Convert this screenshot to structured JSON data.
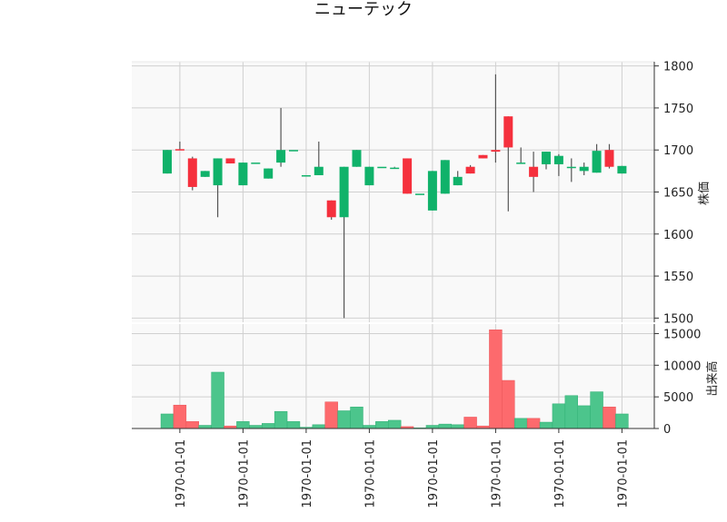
{
  "chart_data": {
    "type": "candlestick",
    "title": "ニューテック",
    "price_ylabel": "株価",
    "volume_ylabel": "出来高",
    "price_ylim": [
      1495,
      1805
    ],
    "price_yticks": [
      "1500",
      "1550",
      "1600",
      "1650",
      "1700",
      "1750",
      "1800"
    ],
    "volume_ylim": [
      0,
      16500
    ],
    "volume_yticks": [
      "0",
      "5000",
      "10000",
      "15000"
    ],
    "x_tick_labels": [
      "1970-01-01",
      "1970-01-01",
      "1970-01-01",
      "1970-01-01",
      "1970-01-01",
      "1970-01-01",
      "1970-01-01",
      "1970-01-01"
    ],
    "x_tick_bar_index": [
      1,
      6,
      11,
      16,
      21,
      26,
      31,
      36
    ],
    "grid": true,
    "colors": {
      "up": "#10b26a",
      "down": "#f5303d",
      "wick": "#555555",
      "up_volume": "#4cc58c",
      "down_volume": "#fd6a6d",
      "grid": "#d0d0d0",
      "panel_bg": "#f9f9f9"
    },
    "bars": [
      {
        "open": 1672,
        "high": 1700,
        "low": 1672,
        "close": 1700,
        "volume": 2300
      },
      {
        "open": 1701,
        "high": 1710,
        "low": 1700,
        "close": 1700,
        "volume": 3700
      },
      {
        "open": 1690,
        "high": 1692,
        "low": 1652,
        "close": 1656,
        "volume": 1100
      },
      {
        "open": 1668,
        "high": 1675,
        "low": 1668,
        "close": 1675,
        "volume": 500
      },
      {
        "open": 1658,
        "high": 1690,
        "low": 1620,
        "close": 1690,
        "volume": 8900
      },
      {
        "open": 1690,
        "high": 1690,
        "low": 1684,
        "close": 1684,
        "volume": 400
      },
      {
        "open": 1658,
        "high": 1685,
        "low": 1658,
        "close": 1685,
        "volume": 1100
      },
      {
        "open": 1685,
        "high": 1685,
        "low": 1685,
        "close": 1685,
        "volume": 500
      },
      {
        "open": 1666,
        "high": 1678,
        "low": 1666,
        "close": 1678,
        "volume": 800
      },
      {
        "open": 1685,
        "high": 1750,
        "low": 1680,
        "close": 1700,
        "volume": 2700
      },
      {
        "open": 1700,
        "high": 1700,
        "low": 1700,
        "close": 1700,
        "volume": 1100
      },
      {
        "open": 1670,
        "high": 1670,
        "low": 1670,
        "close": 1670,
        "volume": 200
      },
      {
        "open": 1670,
        "high": 1710,
        "low": 1670,
        "close": 1680,
        "volume": 600
      },
      {
        "open": 1640,
        "high": 1640,
        "low": 1617,
        "close": 1620,
        "volume": 4200
      },
      {
        "open": 1620,
        "high": 1680,
        "low": 1500,
        "close": 1680,
        "volume": 2800
      },
      {
        "open": 1680,
        "high": 1700,
        "low": 1680,
        "close": 1700,
        "volume": 3400
      },
      {
        "open": 1658,
        "high": 1680,
        "low": 1658,
        "close": 1680,
        "volume": 500
      },
      {
        "open": 1680,
        "high": 1680,
        "low": 1680,
        "close": 1680,
        "volume": 1100
      },
      {
        "open": 1679,
        "high": 1680,
        "low": 1679,
        "close": 1679,
        "volume": 1300
      },
      {
        "open": 1690,
        "high": 1690,
        "low": 1648,
        "close": 1648,
        "volume": 300
      },
      {
        "open": 1648,
        "high": 1648,
        "low": 1648,
        "close": 1648,
        "volume": 100
      },
      {
        "open": 1628,
        "high": 1675,
        "low": 1628,
        "close": 1675,
        "volume": 500
      },
      {
        "open": 1648,
        "high": 1688,
        "low": 1648,
        "close": 1688,
        "volume": 700
      },
      {
        "open": 1658,
        "high": 1675,
        "low": 1658,
        "close": 1668,
        "volume": 600
      },
      {
        "open": 1680,
        "high": 1682,
        "low": 1672,
        "close": 1672,
        "volume": 1800
      },
      {
        "open": 1694,
        "high": 1694,
        "low": 1690,
        "close": 1690,
        "volume": 400
      },
      {
        "open": 1700,
        "high": 1790,
        "low": 1685,
        "close": 1698,
        "volume": 15600
      },
      {
        "open": 1740,
        "high": 1740,
        "low": 1627,
        "close": 1703,
        "volume": 7600
      },
      {
        "open": 1684,
        "high": 1703,
        "low": 1684,
        "close": 1685,
        "volume": 1600
      },
      {
        "open": 1680,
        "high": 1698,
        "low": 1650,
        "close": 1668,
        "volume": 1600
      },
      {
        "open": 1683,
        "high": 1698,
        "low": 1677,
        "close": 1698,
        "volume": 1000
      },
      {
        "open": 1683,
        "high": 1695,
        "low": 1669,
        "close": 1693,
        "volume": 3900
      },
      {
        "open": 1680,
        "high": 1690,
        "low": 1662,
        "close": 1680,
        "volume": 5200
      },
      {
        "open": 1675,
        "high": 1685,
        "low": 1670,
        "close": 1680,
        "volume": 3600
      },
      {
        "open": 1673,
        "high": 1707,
        "low": 1673,
        "close": 1699,
        "volume": 5800
      },
      {
        "open": 1700,
        "high": 1707,
        "low": 1678,
        "close": 1680,
        "volume": 3400
      },
      {
        "open": 1672,
        "high": 1681,
        "low": 1672,
        "close": 1681,
        "volume": 2300
      }
    ]
  }
}
